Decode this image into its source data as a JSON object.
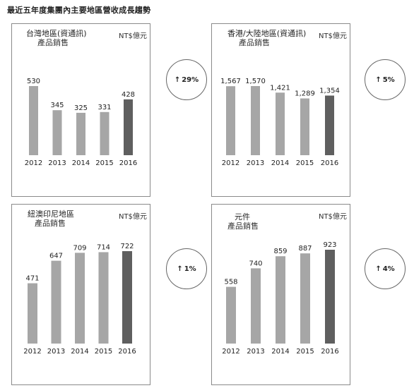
{
  "page_title": "最近五年度集團內主要地區營收成長趨勢",
  "chart_data": [
    {
      "type": "bar",
      "title": "台灣地區(資通訊)",
      "subtitle": "產品銷售",
      "unit": "NT$億元",
      "categories": [
        "2012",
        "2013",
        "2014",
        "2015",
        "2016"
      ],
      "values": [
        530,
        345,
        325,
        331,
        428
      ],
      "highlight_index": 4,
      "growth": "29%",
      "bar_color": "#a6a6a6",
      "highlight_color": "#5f5f5f"
    },
    {
      "type": "bar",
      "title": "香港/大陸地區(資通訊)",
      "subtitle": "產品銷售",
      "unit": "NT$億元",
      "categories": [
        "2012",
        "2013",
        "2014",
        "2015",
        "2016"
      ],
      "values": [
        1567,
        1570,
        1421,
        1289,
        1354
      ],
      "highlight_index": 4,
      "growth": "5%",
      "bar_color": "#a6a6a6",
      "highlight_color": "#5f5f5f"
    },
    {
      "type": "bar",
      "title": "紐澳印尼地區",
      "subtitle": "產品銷售",
      "unit": "NT$億元",
      "categories": [
        "2012",
        "2013",
        "2014",
        "2015",
        "2016"
      ],
      "values": [
        471,
        647,
        709,
        714,
        722
      ],
      "highlight_index": 4,
      "growth": "1%",
      "bar_color": "#a6a6a6",
      "highlight_color": "#5f5f5f"
    },
    {
      "type": "bar",
      "title": "元件",
      "subtitle": "產品銷售",
      "unit": "NT$億元",
      "categories": [
        "2012",
        "2013",
        "2014",
        "2015",
        "2016"
      ],
      "values": [
        558,
        740,
        859,
        887,
        923
      ],
      "highlight_index": 4,
      "growth": "4%",
      "bar_color": "#a6a6a6",
      "highlight_color": "#5f5f5f"
    }
  ]
}
